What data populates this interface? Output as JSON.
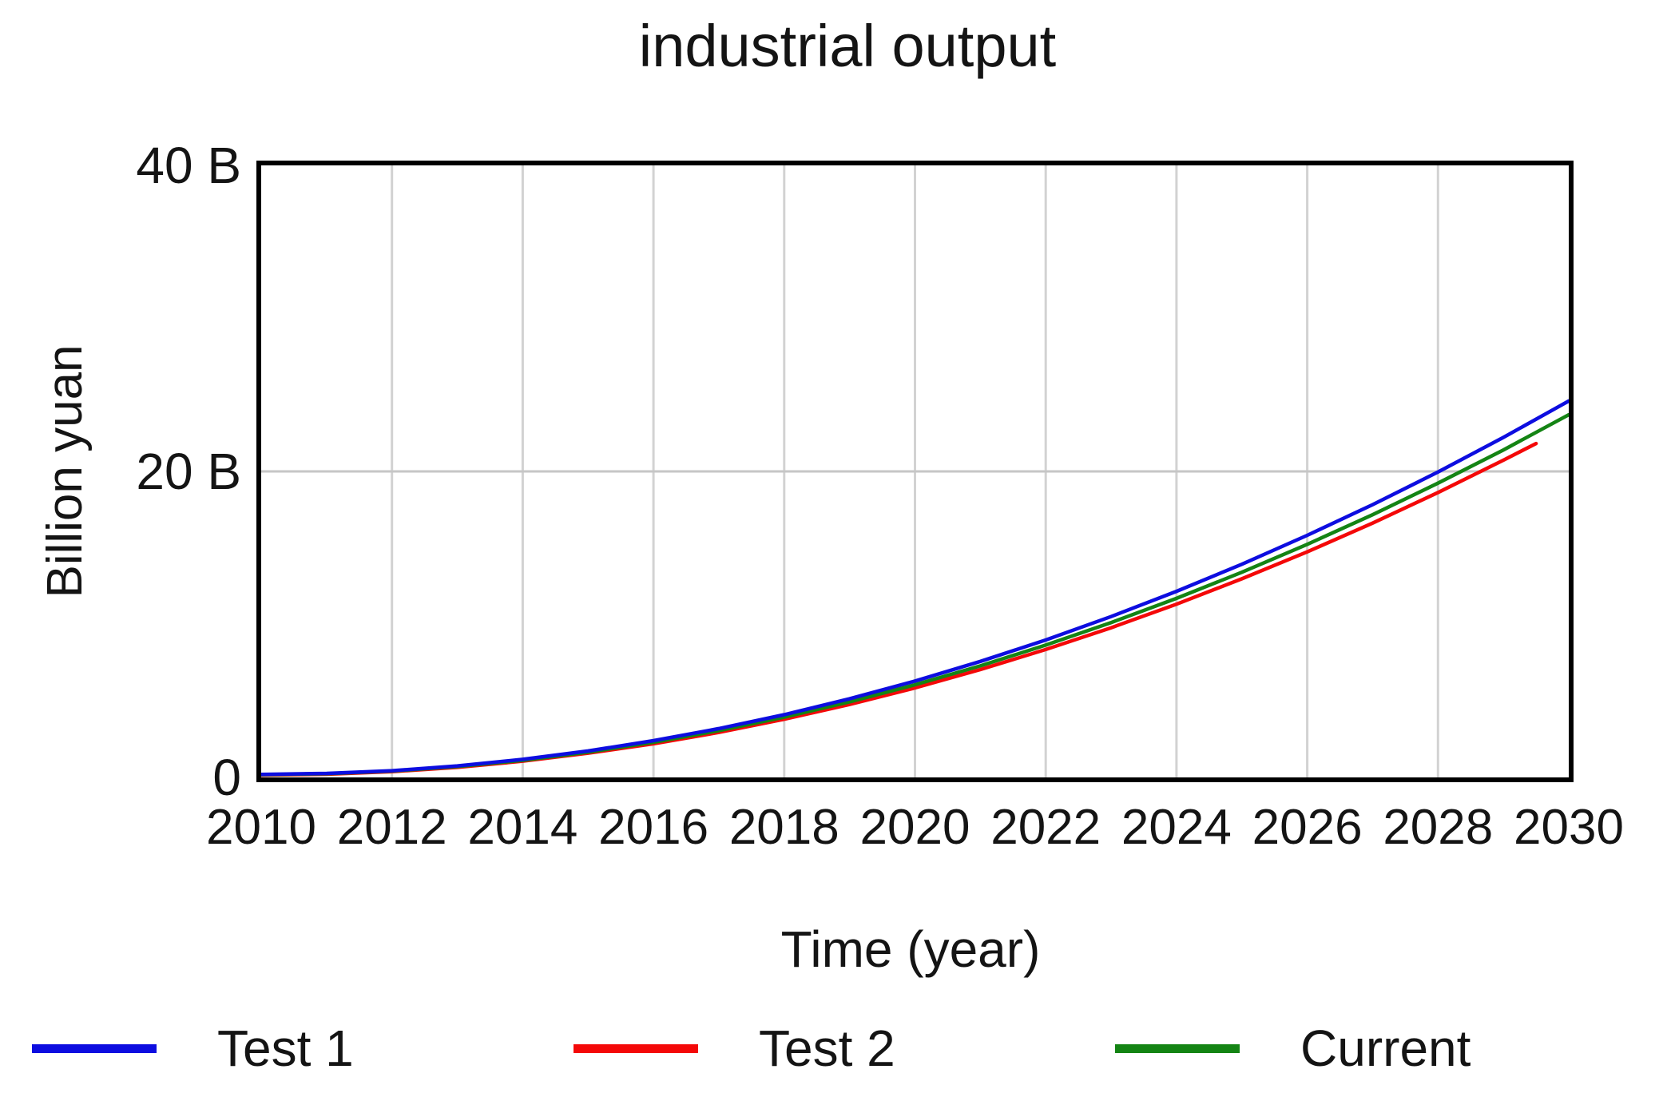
{
  "chart_data": {
    "type": "line",
    "title": "industrial output",
    "xlabel": "Time (year)",
    "ylabel": "Billion yuan",
    "xlim": [
      2010,
      2030
    ],
    "ylim": [
      0,
      40
    ],
    "x_ticks": [
      2010,
      2012,
      2014,
      2016,
      2018,
      2020,
      2022,
      2024,
      2026,
      2028,
      2030
    ],
    "y_ticks": [
      {
        "value": 0,
        "label": "0"
      },
      {
        "value": 20,
        "label": "20 B"
      },
      {
        "value": 40,
        "label": "40 B"
      }
    ],
    "grid": {
      "vertical_at": [
        2012,
        2014,
        2016,
        2018,
        2020,
        2022,
        2024,
        2026,
        2028
      ],
      "horizontal_at": [
        20
      ],
      "color": "#d2d2d2"
    },
    "legend_position": "bottom",
    "draw_order": [
      1,
      2,
      0
    ],
    "series": [
      {
        "name": "Test 1",
        "color": "#0d0de0",
        "x_start": 2010,
        "x_step": 1,
        "values": [
          0.2,
          0.26,
          0.44,
          0.75,
          1.18,
          1.73,
          2.4,
          3.19,
          4.1,
          5.14,
          6.3,
          7.58,
          8.98,
          10.51,
          12.16,
          13.93,
          15.82,
          17.83,
          19.96,
          22.22,
          24.6
        ]
      },
      {
        "name": "Test 2",
        "color": "#f40808",
        "x_start": 2010,
        "x_step": 1,
        "values": [
          0.15,
          0.21,
          0.38,
          0.66,
          1.06,
          1.58,
          2.2,
          2.94,
          3.8,
          4.77,
          5.85,
          7.05,
          8.36,
          9.78,
          11.32,
          12.98,
          14.74,
          16.62,
          18.62,
          20.73
        ],
        "extra_point": [
          2029.5,
          21.82
        ]
      },
      {
        "name": "Current",
        "color": "#148414",
        "x_start": 2010,
        "x_step": 1,
        "values": [
          0.18,
          0.24,
          0.42,
          0.71,
          1.12,
          1.65,
          2.3,
          3.06,
          3.94,
          4.94,
          6.06,
          7.29,
          8.65,
          10.12,
          11.7,
          13.41,
          15.23,
          17.17,
          19.23,
          21.4,
          23.7
        ]
      }
    ],
    "axis_color": "#000000",
    "text_color": "#141414"
  }
}
